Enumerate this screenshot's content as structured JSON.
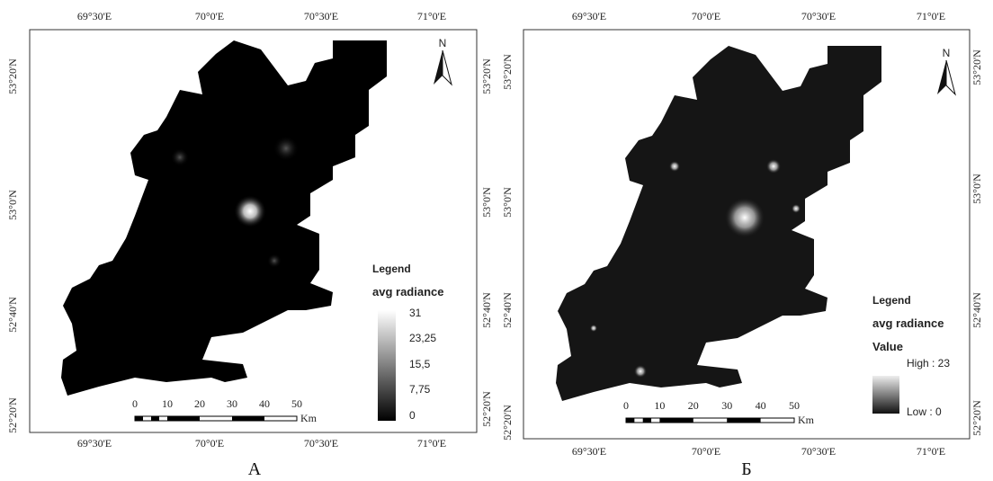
{
  "panels": [
    {
      "caption": "А",
      "lon_labels": [
        "69°30'E",
        "70°0'E",
        "70°30'E",
        "71°0'E"
      ],
      "lat_labels": [
        "53°20'N",
        "53°0'N",
        "52°40'N",
        "52°20'N"
      ],
      "north": "N",
      "scale_labels": [
        "0",
        "10",
        "20",
        "30",
        "40",
        "50"
      ],
      "scale_unit": "Km",
      "legend": {
        "title": "Legend",
        "field": "avg radiance",
        "labels": [
          "31",
          "23,25",
          "15,5",
          "7,75",
          "0"
        ]
      }
    },
    {
      "caption": "Б",
      "lon_labels": [
        "69°30'E",
        "70°0'E",
        "70°30'E",
        "71°0'E"
      ],
      "lat_labels": [
        "53°20'N",
        "53°0'N",
        "52°40'N",
        "52°20'N"
      ],
      "north": "N",
      "scale_labels": [
        "0",
        "10",
        "20",
        "30",
        "40",
        "50"
      ],
      "scale_unit": "Km",
      "legend": {
        "title": "Legend",
        "field": "avg radiance",
        "subtitle": "Value",
        "labels": [
          "High : 23",
          "Low : 0"
        ]
      }
    }
  ]
}
